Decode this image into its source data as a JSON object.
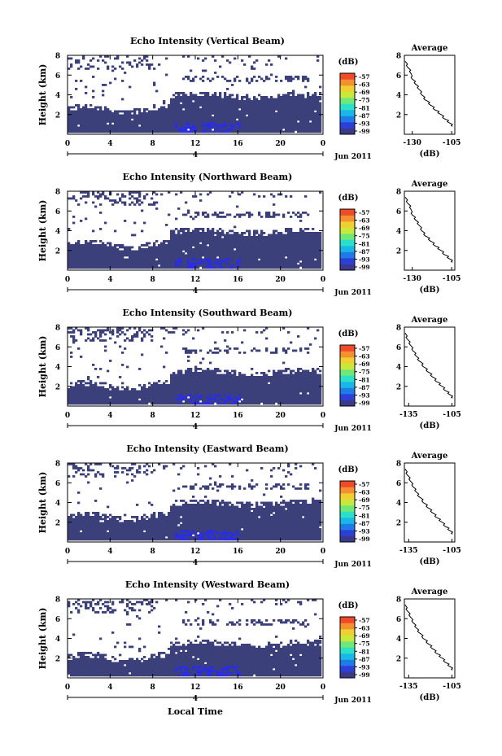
{
  "figure": {
    "xlabel": "Local Time",
    "date_label": "Jun 2011",
    "day_label": "4",
    "ylabel": "Height (km)",
    "colorbar_unit": "(dB)",
    "average_title": "Average",
    "average_xlabel": "(dB)"
  },
  "colors": {
    "background_fill": "#3b3f7a",
    "bright_fill": "#2a2ee0",
    "colorbar": [
      "#3a3a8a",
      "#2e3fd8",
      "#1f7be8",
      "#19b7e8",
      "#2be0c8",
      "#6ee87a",
      "#c8e83a",
      "#f0d030",
      "#f59030",
      "#f04a28"
    ]
  },
  "chart_data": [
    {
      "type": "heatmap",
      "title": "Echo Intensity (Vertical Beam)",
      "x_ticks": [
        "0",
        "4",
        "8",
        "12",
        "16",
        "20",
        "0"
      ],
      "xlim": [
        0,
        24
      ],
      "y_ticks": [
        "2",
        "4",
        "6",
        "8"
      ],
      "ylim": [
        0,
        8
      ],
      "colorbar_ticks": [
        "-57",
        "-63",
        "-69",
        "-75",
        "-81",
        "-87",
        "-93",
        "-99"
      ],
      "average": {
        "type": "line",
        "x_ticks": [
          "-130",
          "-105"
        ],
        "xlim": [
          -135,
          -103
        ],
        "y_ticks": [
          "2",
          "4",
          "6",
          "8"
        ],
        "ylim": [
          0,
          8
        ],
        "x": [
          -134.5,
          -133,
          -131,
          -130,
          -128,
          -126,
          -124,
          -122,
          -119,
          -116,
          -113,
          -110,
          -107,
          -104.5
        ],
        "y": [
          7.4,
          6.8,
          6.2,
          5.6,
          5.1,
          4.6,
          4.0,
          3.5,
          3.0,
          2.5,
          2.1,
          1.6,
          1.2,
          0.8
        ]
      }
    },
    {
      "type": "heatmap",
      "title": "Echo Intensity (Northward Beam)",
      "x_ticks": [
        "0",
        "4",
        "8",
        "12",
        "16",
        "20",
        "0"
      ],
      "xlim": [
        0,
        24
      ],
      "y_ticks": [
        "2",
        "4",
        "6",
        "8"
      ],
      "ylim": [
        0,
        8
      ],
      "colorbar_ticks": [
        "-57",
        "-63",
        "-69",
        "-75",
        "-81",
        "-87",
        "-93",
        "-99"
      ],
      "average": {
        "type": "line",
        "x_ticks": [
          "-130",
          "-105"
        ],
        "xlim": [
          -135,
          -103
        ],
        "y_ticks": [
          "2",
          "4",
          "6",
          "8"
        ],
        "ylim": [
          0,
          8
        ],
        "x": [
          -134.5,
          -133,
          -131,
          -130,
          -128,
          -126,
          -124,
          -122,
          -119,
          -116,
          -113,
          -110,
          -107,
          -104.5
        ],
        "y": [
          7.4,
          6.8,
          6.2,
          5.6,
          5.1,
          4.6,
          4.0,
          3.5,
          3.0,
          2.5,
          2.1,
          1.6,
          1.2,
          0.8
        ]
      }
    },
    {
      "type": "heatmap",
      "title": "Echo Intensity (Southward Beam)",
      "x_ticks": [
        "0",
        "4",
        "8",
        "12",
        "16",
        "20",
        "0"
      ],
      "xlim": [
        0,
        24
      ],
      "y_ticks": [
        "2",
        "4",
        "6",
        "8"
      ],
      "ylim": [
        0,
        8
      ],
      "colorbar_ticks": [
        "-57",
        "-63",
        "-69",
        "-75",
        "-81",
        "-87",
        "-93",
        "-99"
      ],
      "average": {
        "type": "line",
        "x_ticks": [
          "-135",
          "-105"
        ],
        "xlim": [
          -138,
          -103
        ],
        "y_ticks": [
          "2",
          "4",
          "6",
          "8"
        ],
        "ylim": [
          0,
          8
        ],
        "x": [
          -137.5,
          -136,
          -134,
          -132,
          -130,
          -128,
          -125,
          -122,
          -119,
          -116,
          -113,
          -110,
          -107,
          -104.5
        ],
        "y": [
          7.4,
          6.8,
          6.2,
          5.6,
          5.1,
          4.6,
          4.0,
          3.5,
          3.0,
          2.5,
          2.1,
          1.6,
          1.2,
          0.8
        ]
      }
    },
    {
      "type": "heatmap",
      "title": "Echo Intensity (Eastward Beam)",
      "x_ticks": [
        "0",
        "4",
        "8",
        "12",
        "16",
        "20",
        "0"
      ],
      "xlim": [
        0,
        24
      ],
      "y_ticks": [
        "2",
        "4",
        "6",
        "8"
      ],
      "ylim": [
        0,
        8
      ],
      "colorbar_ticks": [
        "-57",
        "-63",
        "-69",
        "-75",
        "-81",
        "-87",
        "-93",
        "-99"
      ],
      "average": {
        "type": "line",
        "x_ticks": [
          "-135",
          "-105"
        ],
        "xlim": [
          -138,
          -103
        ],
        "y_ticks": [
          "2",
          "4",
          "6",
          "8"
        ],
        "ylim": [
          0,
          8
        ],
        "x": [
          -137.5,
          -136,
          -134,
          -132,
          -130,
          -128,
          -125,
          -122,
          -119,
          -116,
          -113,
          -110,
          -107,
          -104.5
        ],
        "y": [
          7.4,
          6.8,
          6.2,
          5.6,
          5.1,
          4.6,
          4.0,
          3.5,
          3.0,
          2.5,
          2.1,
          1.6,
          1.2,
          0.8
        ]
      }
    },
    {
      "type": "heatmap",
      "title": "Echo Intensity (Westward Beam)",
      "x_ticks": [
        "0",
        "4",
        "8",
        "12",
        "16",
        "20",
        "0"
      ],
      "xlim": [
        0,
        24
      ],
      "y_ticks": [
        "2",
        "4",
        "6",
        "8"
      ],
      "ylim": [
        0,
        8
      ],
      "colorbar_ticks": [
        "-57",
        "-63",
        "-69",
        "-75",
        "-81",
        "-87",
        "-93",
        "-99"
      ],
      "average": {
        "type": "line",
        "x_ticks": [
          "-135",
          "-105"
        ],
        "xlim": [
          -138,
          -103
        ],
        "y_ticks": [
          "2",
          "4",
          "6",
          "8"
        ],
        "ylim": [
          0,
          8
        ],
        "x": [
          -137.5,
          -136,
          -134,
          -132,
          -130,
          -128,
          -125,
          -122,
          -119,
          -116,
          -113,
          -110,
          -107,
          -104.5
        ],
        "y": [
          7.4,
          6.8,
          6.2,
          5.6,
          5.1,
          4.6,
          4.0,
          3.5,
          3.0,
          2.5,
          2.1,
          1.6,
          1.2,
          0.8
        ]
      }
    }
  ]
}
